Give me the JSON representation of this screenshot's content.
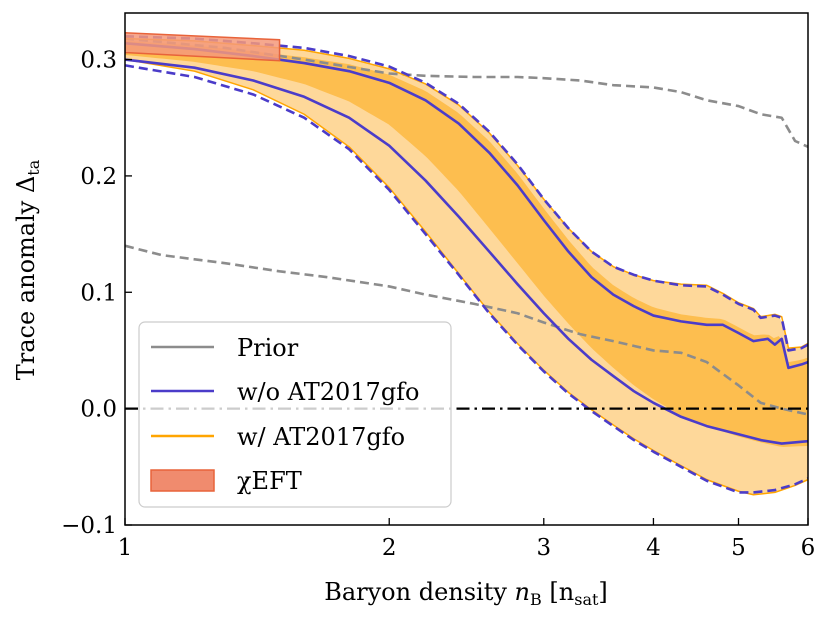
{
  "chart_data": {
    "type": "line",
    "xscale": "log",
    "xlim": [
      1,
      6
    ],
    "ylim": [
      -0.1,
      0.34
    ],
    "xlabel_main": "Baryon density ",
    "xlabel_var": "n",
    "xlabel_var_sub": "B",
    "xlabel_unit_open": " [n",
    "xlabel_unit_sub": "sat",
    "xlabel_unit_close": "]",
    "ylabel_main": "Trace anomaly Δ",
    "ylabel_sub": "ta",
    "x_ticks": [
      {
        "value": 1,
        "label": "1"
      },
      {
        "value": 2,
        "label": "2"
      },
      {
        "value": 3,
        "label": "3"
      },
      {
        "value": 4,
        "label": "4"
      },
      {
        "value": 5,
        "label": "5"
      },
      {
        "value": 6,
        "label": "6"
      }
    ],
    "y_ticks": [
      {
        "value": -0.1,
        "label": "−0.1"
      },
      {
        "value": 0.0,
        "label": "0.0"
      },
      {
        "value": 0.1,
        "label": "0.1"
      },
      {
        "value": 0.2,
        "label": "0.2"
      },
      {
        "value": 0.3,
        "label": "0.3"
      }
    ],
    "reference_line": {
      "y": 0.0,
      "style": "dash-dot",
      "color": "#000000"
    },
    "legend": {
      "location": "lower-left",
      "entries": [
        {
          "label": "Prior",
          "kind": "line",
          "color": "#8c8c8c"
        },
        {
          "label": "w/o AT2017gfo",
          "kind": "line",
          "color": "#4b3cc9"
        },
        {
          "label": "w/ AT2017gfo",
          "kind": "line",
          "color": "#ffa500"
        },
        {
          "label": "χEFT",
          "kind": "patch",
          "color": "#f08b6e"
        }
      ]
    },
    "colors": {
      "prior": "#8c8c8c",
      "without": "#4b3cc9",
      "with_inner": "#fdbe4f",
      "with_outer": "#fed89a",
      "with_line": "#ffa500",
      "chieft_fill": "#f4997a",
      "chieft_edge": "#e8633a"
    },
    "series": [
      {
        "name": "Prior upper",
        "style": "dashed",
        "color": "#8c8c8c",
        "x": [
          1.0,
          1.3,
          1.6,
          2.0,
          2.2,
          2.5,
          2.8,
          3.0,
          3.3,
          3.6,
          4.0,
          4.3,
          4.6,
          5.0,
          5.3,
          5.6,
          5.8,
          6.0
        ],
        "y": [
          0.318,
          0.31,
          0.3,
          0.288,
          0.286,
          0.285,
          0.285,
          0.284,
          0.282,
          0.278,
          0.276,
          0.272,
          0.265,
          0.26,
          0.253,
          0.25,
          0.23,
          0.225
        ]
      },
      {
        "name": "Prior lower",
        "style": "dashed",
        "color": "#8c8c8c",
        "x": [
          1.0,
          1.1,
          1.3,
          1.5,
          1.7,
          2.0,
          2.2,
          2.5,
          2.8,
          3.0,
          3.3,
          3.6,
          4.0,
          4.3,
          4.6,
          5.0,
          5.3,
          5.6,
          6.0
        ],
        "y": [
          0.14,
          0.132,
          0.125,
          0.118,
          0.113,
          0.105,
          0.098,
          0.09,
          0.082,
          0.074,
          0.064,
          0.058,
          0.05,
          0.048,
          0.04,
          0.02,
          0.005,
          0.0,
          -0.005
        ]
      },
      {
        "name": "w/o AT2017gfo 90% upper",
        "style": "dashed",
        "color": "#4b3cc9",
        "x": [
          1.0,
          1.2,
          1.4,
          1.6,
          1.8,
          2.0,
          2.2,
          2.4,
          2.6,
          2.8,
          3.0,
          3.2,
          3.4,
          3.6,
          3.8,
          4.0,
          4.3,
          4.6,
          4.8,
          5.0,
          5.2,
          5.3,
          5.5,
          5.6,
          5.7,
          5.9,
          6.0
        ],
        "y": [
          0.32,
          0.318,
          0.314,
          0.31,
          0.303,
          0.294,
          0.28,
          0.262,
          0.238,
          0.21,
          0.18,
          0.155,
          0.135,
          0.122,
          0.115,
          0.11,
          0.106,
          0.105,
          0.098,
          0.09,
          0.085,
          0.078,
          0.08,
          0.078,
          0.05,
          0.052,
          0.055
        ]
      },
      {
        "name": "w/o AT2017gfo 50% upper",
        "style": "solid",
        "color": "#4b3cc9",
        "x": [
          1.0,
          1.2,
          1.4,
          1.6,
          1.8,
          2.0,
          2.2,
          2.4,
          2.6,
          2.8,
          3.0,
          3.2,
          3.4,
          3.6,
          3.8,
          4.0,
          4.3,
          4.6,
          4.8,
          5.0,
          5.2,
          5.4,
          5.5,
          5.6,
          5.7,
          5.9,
          6.0
        ],
        "y": [
          0.314,
          0.309,
          0.303,
          0.297,
          0.29,
          0.28,
          0.265,
          0.245,
          0.22,
          0.192,
          0.162,
          0.135,
          0.113,
          0.098,
          0.088,
          0.08,
          0.075,
          0.072,
          0.072,
          0.065,
          0.058,
          0.06,
          0.055,
          0.06,
          0.035,
          0.038,
          0.04
        ]
      },
      {
        "name": "w/o AT2017gfo 50% lower",
        "style": "solid",
        "color": "#4b3cc9",
        "x": [
          1.0,
          1.2,
          1.4,
          1.6,
          1.8,
          2.0,
          2.2,
          2.4,
          2.6,
          2.8,
          3.0,
          3.2,
          3.4,
          3.6,
          3.8,
          4.0,
          4.3,
          4.6,
          5.0,
          5.3,
          5.6,
          6.0
        ],
        "y": [
          0.3,
          0.293,
          0.282,
          0.268,
          0.25,
          0.226,
          0.196,
          0.165,
          0.135,
          0.107,
          0.082,
          0.06,
          0.042,
          0.028,
          0.015,
          0.005,
          -0.007,
          -0.015,
          -0.022,
          -0.027,
          -0.03,
          -0.028
        ]
      },
      {
        "name": "w/o AT2017gfo 90% lower",
        "style": "dashed",
        "color": "#4b3cc9",
        "x": [
          1.0,
          1.2,
          1.4,
          1.6,
          1.8,
          2.0,
          2.2,
          2.4,
          2.6,
          2.8,
          3.0,
          3.2,
          3.4,
          3.6,
          3.8,
          4.0,
          4.3,
          4.6,
          5.0,
          5.2,
          5.5,
          5.8,
          6.0
        ],
        "y": [
          0.295,
          0.285,
          0.27,
          0.25,
          0.223,
          0.188,
          0.15,
          0.115,
          0.082,
          0.055,
          0.032,
          0.013,
          -0.002,
          -0.015,
          -0.027,
          -0.037,
          -0.05,
          -0.062,
          -0.072,
          -0.072,
          -0.07,
          -0.065,
          -0.06
        ]
      },
      {
        "name": "w/ AT2017gfo 90% upper",
        "style": "solid",
        "color": "#ffa500",
        "x": [
          1.0,
          1.2,
          1.4,
          1.6,
          1.8,
          2.0,
          2.2,
          2.4,
          2.6,
          2.8,
          3.0,
          3.2,
          3.4,
          3.6,
          3.8,
          4.0,
          4.3,
          4.6,
          4.8,
          5.0,
          5.2,
          5.3,
          5.5,
          5.6,
          5.7,
          5.9,
          6.0
        ],
        "y": [
          0.318,
          0.316,
          0.312,
          0.308,
          0.301,
          0.292,
          0.279,
          0.261,
          0.237,
          0.209,
          0.18,
          0.155,
          0.135,
          0.122,
          0.115,
          0.11,
          0.107,
          0.106,
          0.099,
          0.091,
          0.086,
          0.079,
          0.081,
          0.079,
          0.052,
          0.053,
          0.056
        ]
      },
      {
        "name": "w/ AT2017gfo 90% lower",
        "style": "solid",
        "color": "#ffa500",
        "x": [
          1.0,
          1.2,
          1.4,
          1.6,
          1.8,
          2.0,
          2.2,
          2.4,
          2.6,
          2.8,
          3.0,
          3.2,
          3.4,
          3.6,
          3.8,
          4.0,
          4.3,
          4.6,
          5.0,
          5.2,
          5.5,
          5.8,
          6.0
        ],
        "y": [
          0.3,
          0.29,
          0.274,
          0.253,
          0.225,
          0.19,
          0.152,
          0.116,
          0.083,
          0.056,
          0.033,
          0.014,
          -0.001,
          -0.014,
          -0.026,
          -0.036,
          -0.049,
          -0.061,
          -0.071,
          -0.074,
          -0.072,
          -0.066,
          -0.061
        ]
      },
      {
        "name": "w/ AT2017gfo 50% upper",
        "style": "solid",
        "color": "#ffa500",
        "x": [
          1.0,
          1.2,
          1.4,
          1.6,
          1.8,
          2.0,
          2.2,
          2.4,
          2.6,
          2.8,
          3.0,
          3.2,
          3.4,
          3.6,
          3.8,
          4.0,
          4.3,
          4.6,
          4.8,
          5.0,
          5.2,
          5.4,
          5.5,
          5.6,
          5.7,
          5.9,
          6.0
        ],
        "y": [
          0.316,
          0.312,
          0.307,
          0.302,
          0.296,
          0.287,
          0.273,
          0.254,
          0.23,
          0.202,
          0.172,
          0.145,
          0.122,
          0.106,
          0.095,
          0.087,
          0.081,
          0.078,
          0.077,
          0.07,
          0.063,
          0.064,
          0.06,
          0.064,
          0.04,
          0.042,
          0.044
        ]
      },
      {
        "name": "w/ AT2017gfo 50% lower",
        "style": "solid",
        "color": "#ffa500",
        "x": [
          1.0,
          1.2,
          1.4,
          1.6,
          1.8,
          2.0,
          2.2,
          2.4,
          2.6,
          2.8,
          3.0,
          3.2,
          3.4,
          3.6,
          3.8,
          4.0,
          4.3,
          4.6,
          5.0,
          5.3,
          5.6,
          6.0
        ],
        "y": [
          0.304,
          0.298,
          0.29,
          0.279,
          0.264,
          0.244,
          0.217,
          0.187,
          0.155,
          0.125,
          0.097,
          0.073,
          0.052,
          0.035,
          0.02,
          0.008,
          -0.006,
          -0.015,
          -0.024,
          -0.029,
          -0.033,
          -0.032
        ]
      }
    ],
    "chieft_band": {
      "x": [
        1.0,
        1.5
      ],
      "lower": [
        0.306,
        0.299
      ],
      "upper": [
        0.323,
        0.317
      ]
    }
  }
}
